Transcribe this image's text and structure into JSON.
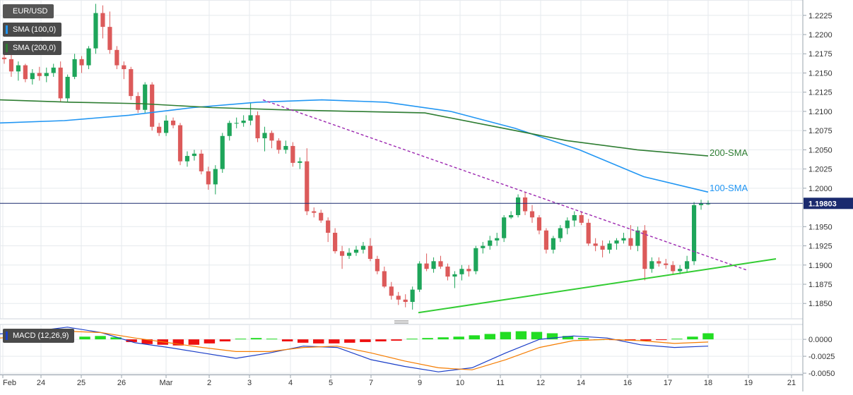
{
  "chart_data": {
    "type": "candlestick",
    "symbol": "EUR/USD",
    "indicators": {
      "sma100_label": "SMA (100,0)",
      "sma200_label": "SMA (200,0)",
      "macd_label": "MACD (12,26,9)",
      "sma100_annotation": "100-SMA",
      "sma200_annotation": "200-SMA",
      "last_price_label": "1.19803"
    },
    "y_axis": {
      "ticks": [
        "1.2225",
        "1.2200",
        "1.2175",
        "1.2150",
        "1.2125",
        "1.2100",
        "1.2075",
        "1.2050",
        "1.2025",
        "1.2000",
        "1.1950",
        "1.1925",
        "1.1900",
        "1.1875",
        "1.1850"
      ],
      "ylim": [
        1.183,
        1.2245
      ]
    },
    "macd_axis": {
      "ticks": [
        "0.0000",
        "-0.0025",
        "-0.0050"
      ],
      "ylim": [
        -0.0052,
        0.0022
      ]
    },
    "x_axis": {
      "ticks": [
        "Feb",
        "24",
        "25",
        "26",
        "Mar",
        "2",
        "3",
        "4",
        "5",
        "7",
        "9",
        "10",
        "11",
        "12",
        "14",
        "16",
        "17",
        "18",
        "19",
        "21"
      ]
    },
    "colors": {
      "up": "#1ea55a",
      "down": "#dc5a5a",
      "sma100": "#2196f3",
      "sma200": "#2e7d32",
      "resistance": "#9c27b0",
      "support": "#33cc33",
      "price_line": "#1a2a6e",
      "macd": "#1a3ec8",
      "signal": "#f57c00",
      "hist_pos": "#22dd22",
      "hist_neg": "#ee1111"
    },
    "candles": [
      [
        1.217,
        1.2177,
        1.2162,
        1.2168
      ],
      [
        1.2168,
        1.2175,
        1.2145,
        1.2152
      ],
      [
        1.2152,
        1.2165,
        1.214,
        1.216
      ],
      [
        1.216,
        1.2162,
        1.2138,
        1.2142
      ],
      [
        1.2142,
        1.2155,
        1.2135,
        1.215
      ],
      [
        1.215,
        1.2158,
        1.214,
        1.2146
      ],
      [
        1.2146,
        1.2157,
        1.2138,
        1.215
      ],
      [
        1.215,
        1.2162,
        1.2145,
        1.2157
      ],
      [
        1.2157,
        1.2165,
        1.2112,
        1.2117
      ],
      [
        1.2117,
        1.2148,
        1.2112,
        1.2145
      ],
      [
        1.2145,
        1.2175,
        1.2142,
        1.2168
      ],
      [
        1.2168,
        1.2172,
        1.215,
        1.216
      ],
      [
        1.216,
        1.2185,
        1.2155,
        1.2182
      ],
      [
        1.2182,
        1.224,
        1.2175,
        1.2228
      ],
      [
        1.2228,
        1.2238,
        1.2195,
        1.221
      ],
      [
        1.221,
        1.223,
        1.2175,
        1.218
      ],
      [
        1.218,
        1.2185,
        1.2155,
        1.216
      ],
      [
        1.216,
        1.2165,
        1.2142,
        1.2155
      ],
      [
        1.2155,
        1.2158,
        1.2115,
        1.212
      ],
      [
        1.212,
        1.2125,
        1.2098,
        1.2102
      ],
      [
        1.2102,
        1.2138,
        1.2098,
        1.2135
      ],
      [
        1.2135,
        1.2138,
        1.2075,
        1.208
      ],
      [
        1.208,
        1.2085,
        1.2068,
        1.2072
      ],
      [
        1.2072,
        1.2095,
        1.2068,
        1.2088
      ],
      [
        1.2088,
        1.2092,
        1.2078,
        1.2082
      ],
      [
        1.2082,
        1.2085,
        1.203,
        1.2035
      ],
      [
        1.2035,
        1.2048,
        1.2028,
        1.2042
      ],
      [
        1.2042,
        1.205,
        1.2036,
        1.2045
      ],
      [
        1.2045,
        1.205,
        1.2018,
        1.2022
      ],
      [
        1.2022,
        1.2028,
        1.1998,
        1.2005
      ],
      [
        1.2005,
        1.203,
        1.1992,
        1.2025
      ],
      [
        1.2025,
        1.2072,
        1.202,
        1.2068
      ],
      [
        1.2068,
        1.2088,
        1.2062,
        1.2085
      ],
      [
        1.2085,
        1.2092,
        1.2078,
        1.2085
      ],
      [
        1.2085,
        1.2095,
        1.208,
        1.2088
      ],
      [
        1.2088,
        1.2112,
        1.2082,
        1.2095
      ],
      [
        1.2095,
        1.21,
        1.206,
        1.2065
      ],
      [
        1.2065,
        1.208,
        1.2048,
        1.2072
      ],
      [
        1.2072,
        1.2075,
        1.2052,
        1.2062
      ],
      [
        1.2062,
        1.2065,
        1.2045,
        1.205
      ],
      [
        1.205,
        1.2062,
        1.2045,
        1.2055
      ],
      [
        1.2055,
        1.206,
        1.2028,
        1.2033
      ],
      [
        1.2033,
        1.204,
        1.2025,
        1.2035
      ],
      [
        1.2035,
        1.2052,
        1.1965,
        1.197
      ],
      [
        1.197,
        1.1975,
        1.1962,
        1.1968
      ],
      [
        1.1968,
        1.1972,
        1.1955,
        1.1958
      ],
      [
        1.1958,
        1.1962,
        1.193,
        1.1942
      ],
      [
        1.1942,
        1.1948,
        1.1915,
        1.1918
      ],
      [
        1.1918,
        1.1925,
        1.1895,
        1.1912
      ],
      [
        1.1912,
        1.1922,
        1.1908,
        1.1916
      ],
      [
        1.1916,
        1.1925,
        1.1912,
        1.192
      ],
      [
        1.192,
        1.193,
        1.1915,
        1.1925
      ],
      [
        1.1925,
        1.1935,
        1.1905,
        1.1908
      ],
      [
        1.1908,
        1.1912,
        1.1888,
        1.1892
      ],
      [
        1.1892,
        1.1898,
        1.187,
        1.1872
      ],
      [
        1.1872,
        1.1878,
        1.1855,
        1.186
      ],
      [
        1.186,
        1.1865,
        1.1848,
        1.1855
      ],
      [
        1.1855,
        1.1862,
        1.1845,
        1.1852
      ],
      [
        1.1852,
        1.1872,
        1.1842,
        1.1868
      ],
      [
        1.1868,
        1.1905,
        1.1865,
        1.1902
      ],
      [
        1.1902,
        1.1915,
        1.1892,
        1.1895
      ],
      [
        1.1895,
        1.191,
        1.189,
        1.1905
      ],
      [
        1.1905,
        1.1912,
        1.1895,
        1.1898
      ],
      [
        1.1898,
        1.1902,
        1.188,
        1.1885
      ],
      [
        1.1885,
        1.1892,
        1.187,
        1.1888
      ],
      [
        1.1888,
        1.19,
        1.188,
        1.1895
      ],
      [
        1.1895,
        1.19,
        1.1885,
        1.1892
      ],
      [
        1.1892,
        1.1925,
        1.1888,
        1.1922
      ],
      [
        1.1922,
        1.193,
        1.1915,
        1.1925
      ],
      [
        1.1925,
        1.1938,
        1.192,
        1.1932
      ],
      [
        1.1932,
        1.1942,
        1.1925,
        1.1935
      ],
      [
        1.1935,
        1.1965,
        1.193,
        1.1962
      ],
      [
        1.1962,
        1.197,
        1.196,
        1.1965
      ],
      [
        1.1965,
        1.1992,
        1.1962,
        1.1988
      ],
      [
        1.1988,
        1.1995,
        1.1965,
        1.197
      ],
      [
        1.197,
        1.1978,
        1.1955,
        1.1962
      ],
      [
        1.1962,
        1.1965,
        1.194,
        1.1945
      ],
      [
        1.1945,
        1.1948,
        1.1915,
        1.192
      ],
      [
        1.192,
        1.1938,
        1.1915,
        1.1935
      ],
      [
        1.1935,
        1.1952,
        1.193,
        1.1948
      ],
      [
        1.1948,
        1.1962,
        1.194,
        1.1958
      ],
      [
        1.1958,
        1.197,
        1.195,
        1.1965
      ],
      [
        1.1965,
        1.197,
        1.1952,
        1.1955
      ],
      [
        1.1955,
        1.196,
        1.1925,
        1.1928
      ],
      [
        1.1928,
        1.1935,
        1.1918,
        1.1925
      ],
      [
        1.1925,
        1.1932,
        1.191,
        1.192
      ],
      [
        1.192,
        1.1932,
        1.1915,
        1.1928
      ],
      [
        1.1928,
        1.1935,
        1.192,
        1.1932
      ],
      [
        1.1932,
        1.1942,
        1.1928,
        1.1935
      ],
      [
        1.1935,
        1.1952,
        1.192,
        1.1925
      ],
      [
        1.1925,
        1.195,
        1.1918,
        1.1945
      ],
      [
        1.1945,
        1.1952,
        1.188,
        1.1895
      ],
      [
        1.1895,
        1.191,
        1.189,
        1.1905
      ],
      [
        1.1905,
        1.191,
        1.1898,
        1.1902
      ],
      [
        1.1902,
        1.1908,
        1.1895,
        1.19
      ],
      [
        1.19,
        1.1905,
        1.1888,
        1.1892
      ],
      [
        1.1892,
        1.19,
        1.1888,
        1.1895
      ],
      [
        1.1895,
        1.1912,
        1.189,
        1.1905
      ],
      [
        1.1905,
        1.1982,
        1.19,
        1.1978
      ],
      [
        1.1978,
        1.1985,
        1.1972,
        1.198
      ],
      [
        1.198,
        1.1984,
        1.1978,
        1.198
      ]
    ],
    "sma100": [
      1.2085,
      1.2088,
      1.2095,
      1.2105,
      1.2112,
      1.2115,
      1.2112,
      1.21,
      1.2078,
      1.205,
      1.2015,
      1.1995
    ],
    "sma200": [
      1.2115,
      1.2112,
      1.211,
      1.2105,
      1.2102,
      1.21,
      1.2098,
      1.208,
      1.2062,
      1.205,
      1.2042
    ],
    "resistance_line": [
      [
        1.2115,
        1.2102
      ],
      [
        1.1893,
        1.1888
      ]
    ],
    "support_line": [
      [
        1.1838,
        1.184
      ],
      [
        1.1908,
        1.1908
      ]
    ],
    "macd_line": [
      0.0008,
      0.0012,
      0.0018,
      0.001,
      -0.0005,
      -0.0012,
      -0.002,
      -0.0028,
      -0.002,
      -0.001,
      -0.0012,
      -0.003,
      -0.004,
      -0.0048,
      -0.0042,
      -0.002,
      0.0,
      0.0005,
      0.0002,
      -0.0008,
      -0.0012,
      -0.001
    ],
    "signal_line": [
      0.0002,
      0.0006,
      0.0012,
      0.001,
      0.0002,
      -0.0005,
      -0.0012,
      -0.0018,
      -0.0018,
      -0.0012,
      -0.001,
      -0.002,
      -0.0032,
      -0.0042,
      -0.0045,
      -0.003,
      -0.0012,
      -0.0002,
      0.0,
      -0.0002,
      -0.0006,
      -0.0004
    ],
    "histogram": [
      0.0004,
      0.0005,
      0.0003,
      -0.0004,
      -0.0007,
      -0.0008,
      -0.0009,
      -0.0008,
      -0.0006,
      -0.0003,
      0.0001,
      0.0002,
      0.0001,
      -0.0003,
      -0.0005,
      -0.0006,
      -0.0006,
      -0.0005,
      -0.0004,
      -0.0003,
      -0.0002,
      0.0001,
      0.0002,
      0.0003,
      0.0004,
      0.0006,
      0.0008,
      0.0011,
      0.0012,
      0.0011,
      0.0009,
      0.0005,
      0.0002,
      0.0,
      -0.0001,
      -0.0002,
      -0.0002,
      -0.0001,
      0.0001,
      0.0004,
      0.0009
    ]
  }
}
